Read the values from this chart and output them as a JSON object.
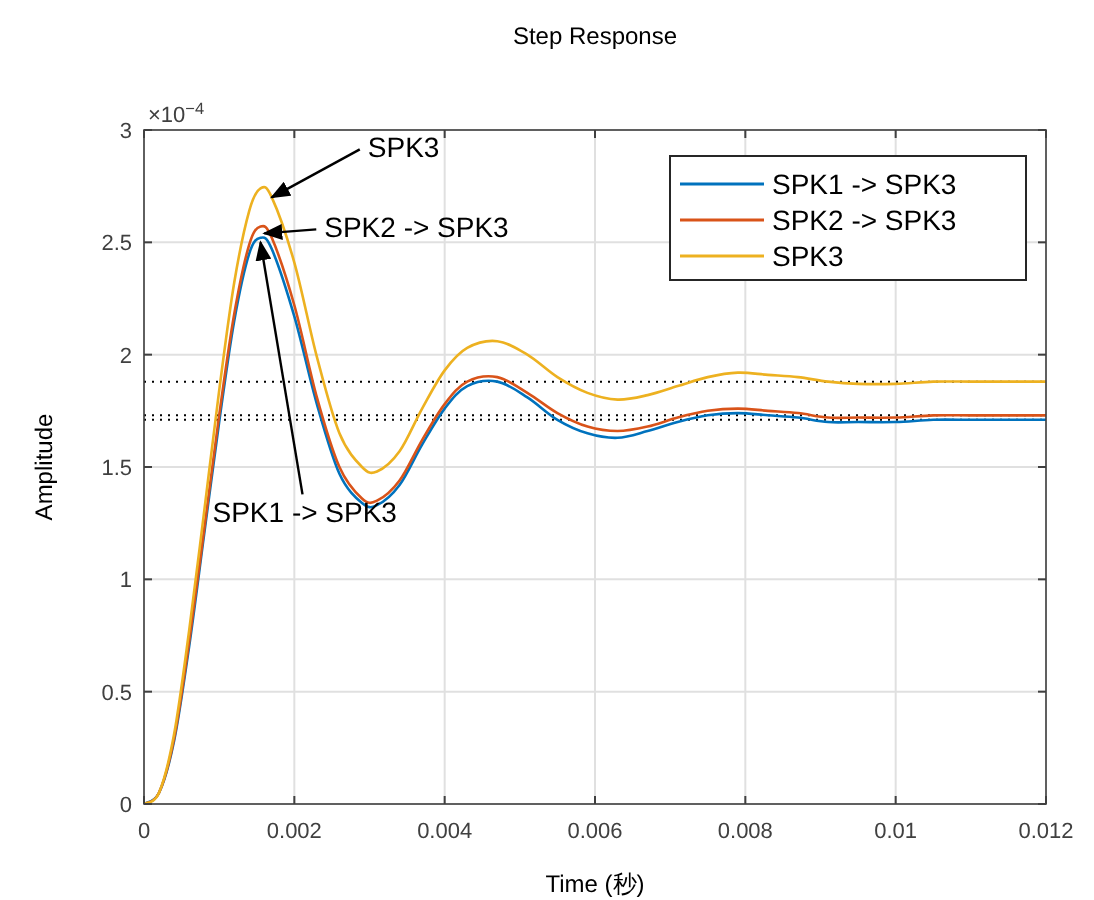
{
  "chart_data": {
    "type": "line",
    "title": "Step Response",
    "xlabel": "Time (秒)",
    "ylabel": "Amplitude",
    "x": [
      0,
      0.0002,
      0.0004,
      0.0006,
      0.0008,
      0.001,
      0.0012,
      0.0014,
      0.00155,
      0.0017,
      0.002,
      0.0023,
      0.0026,
      0.0029,
      0.0031,
      0.0034,
      0.0037,
      0.004,
      0.0043,
      0.0047,
      0.0051,
      0.0055,
      0.0059,
      0.0063,
      0.0067,
      0.0071,
      0.0075,
      0.0079,
      0.0083,
      0.0087,
      0.0091,
      0.0095,
      0.01,
      0.0105,
      0.011,
      0.0115,
      0.012
    ],
    "series": [
      {
        "name": "SPK1 -> SPK3",
        "color": "#0072bd",
        "values": [
          0,
          0.05,
          0.28,
          0.7,
          1.2,
          1.7,
          2.15,
          2.45,
          2.52,
          2.47,
          2.17,
          1.78,
          1.47,
          1.34,
          1.33,
          1.42,
          1.6,
          1.76,
          1.86,
          1.88,
          1.81,
          1.71,
          1.65,
          1.63,
          1.66,
          1.7,
          1.73,
          1.74,
          1.73,
          1.72,
          1.7,
          1.7,
          1.7,
          1.71,
          1.71,
          1.71,
          1.71
        ]
      },
      {
        "name": "SPK2 -> SPK3",
        "color": "#d95319",
        "values": [
          0,
          0.05,
          0.29,
          0.72,
          1.22,
          1.73,
          2.18,
          2.49,
          2.57,
          2.52,
          2.22,
          1.81,
          1.5,
          1.36,
          1.35,
          1.44,
          1.62,
          1.78,
          1.88,
          1.9,
          1.83,
          1.74,
          1.68,
          1.66,
          1.68,
          1.72,
          1.75,
          1.76,
          1.75,
          1.74,
          1.72,
          1.72,
          1.72,
          1.73,
          1.73,
          1.73,
          1.73
        ]
      },
      {
        "name": "SPK3",
        "color": "#edb120",
        "values": [
          0,
          0.05,
          0.31,
          0.77,
          1.3,
          1.84,
          2.32,
          2.64,
          2.74,
          2.7,
          2.41,
          1.99,
          1.65,
          1.5,
          1.48,
          1.57,
          1.76,
          1.93,
          2.03,
          2.06,
          2,
          1.9,
          1.83,
          1.8,
          1.82,
          1.86,
          1.9,
          1.92,
          1.91,
          1.9,
          1.88,
          1.87,
          1.87,
          1.88,
          1.88,
          1.88,
          1.88
        ]
      }
    ],
    "ref_lines": [
      {
        "axis": "y",
        "value": 1.88,
        "color": "#000000",
        "line_style": "dotted"
      },
      {
        "axis": "y",
        "value": 1.73,
        "color": "#000000",
        "line_style": "dotted"
      },
      {
        "axis": "y",
        "value": 1.71,
        "color": "#000000",
        "line_style": "dotted"
      }
    ],
    "annotations": [
      "×10$^{−4}$",
      {
        "text": "SPK3",
        "x": 0.0017,
        "y": 2.7
      },
      {
        "text": "SPK2 -> SPK3",
        "x": 0.0016,
        "y": 2.54
      },
      {
        "text": "SPK1 -> SPK3",
        "x": 0.00155,
        "y": 2.5
      }
    ],
    "xlim": [
      0,
      0.012
    ],
    "xticks": [
      0,
      0.002,
      0.004,
      0.006,
      0.008,
      {
        "value": 0.01,
        "label": "0.01"
      },
      0.012
    ],
    "ylim": [
      0,
      3
    ],
    "yticks": [
      0,
      0.5,
      1,
      1.5,
      2,
      2.5,
      3
    ],
    "grid": true,
    "legend": "top right",
    "line_style": "solid",
    "marker": "none"
  }
}
